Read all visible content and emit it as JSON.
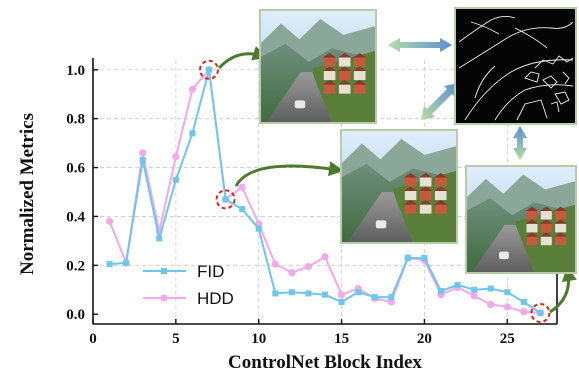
{
  "chart_data": {
    "type": "line",
    "xlabel": "ControlNet Block Index",
    "ylabel": "Normalized Metrics",
    "xlim": [
      0,
      28
    ],
    "ylim": [
      -0.04,
      1.04
    ],
    "xticks": [
      0,
      5,
      10,
      15,
      20,
      25
    ],
    "yticks": [
      0.0,
      0.2,
      0.4,
      0.6,
      0.8,
      1.0
    ],
    "x_tick_labels": [
      "0",
      "5",
      "10",
      "15",
      "20",
      "25"
    ],
    "y_tick_labels": [
      "0.0",
      "0.2",
      "0.4",
      "0.6",
      "0.8",
      "1.0"
    ],
    "grid": true,
    "legend_position": "lower-left",
    "x": [
      1,
      2,
      3,
      4,
      5,
      6,
      7,
      8,
      9,
      10,
      11,
      12,
      13,
      14,
      15,
      16,
      17,
      18,
      19,
      20,
      21,
      22,
      23,
      24,
      25,
      26,
      27
    ],
    "series": [
      {
        "name": "FID",
        "color": "#6ec6ea",
        "marker": "square",
        "values": [
          0.205,
          0.21,
          0.63,
          0.31,
          0.55,
          0.74,
          1.0,
          0.47,
          0.43,
          0.35,
          0.085,
          0.09,
          0.085,
          0.08,
          0.05,
          0.09,
          0.07,
          0.07,
          0.23,
          0.23,
          0.095,
          0.12,
          0.1,
          0.105,
          0.09,
          0.05,
          0.005
        ]
      },
      {
        "name": "HDD",
        "color": "#f2a8ec",
        "marker": "circle",
        "values": [
          0.38,
          0.21,
          0.66,
          0.34,
          0.645,
          0.92,
          1.0,
          0.47,
          0.52,
          0.37,
          0.205,
          0.17,
          0.195,
          0.235,
          0.08,
          0.105,
          0.065,
          0.05,
          0.23,
          0.22,
          0.08,
          0.11,
          0.075,
          0.04,
          0.03,
          0.01,
          0.005
        ]
      }
    ],
    "highlighted_points": [
      {
        "x": 7,
        "y": 1.0
      },
      {
        "x": 8,
        "y": 0.47
      },
      {
        "x": 27,
        "y": 0.005
      }
    ]
  },
  "legend": {
    "fid_label": "FID",
    "hdd_label": "HDD"
  },
  "insets": [
    {
      "icon": "mountain-village-road-photo"
    },
    {
      "icon": "controlnet-edge-map"
    },
    {
      "icon": "mountain-village-road-photo"
    },
    {
      "icon": "mountain-village-road-photo"
    }
  ]
}
